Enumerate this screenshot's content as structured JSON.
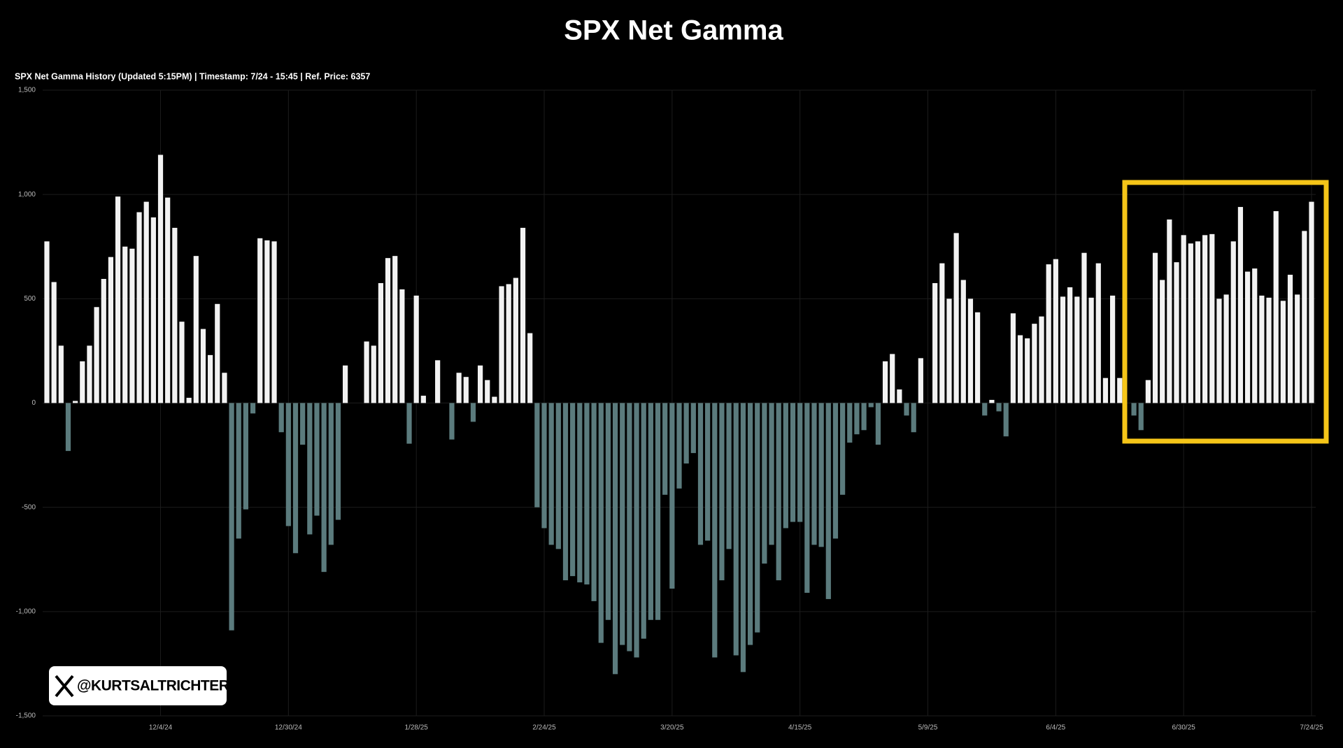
{
  "chart_data": {
    "type": "bar",
    "title": "SPX Net Gamma",
    "subtitle": "SPX Net Gamma History (Updated 5:15PM) | Timestamp: 7/24 - 15:45  | Ref. Price: 6357",
    "handle": "@KURTSALTRICHTER",
    "categories": [
      null,
      null,
      null,
      null,
      null,
      null,
      null,
      null,
      null,
      null,
      null,
      null,
      null,
      null,
      null,
      null,
      "12/4/24",
      null,
      null,
      null,
      null,
      null,
      null,
      null,
      null,
      null,
      null,
      null,
      null,
      null,
      null,
      null,
      null,
      null,
      "12/30/24",
      null,
      null,
      null,
      null,
      null,
      null,
      null,
      null,
      null,
      null,
      null,
      null,
      null,
      null,
      null,
      null,
      null,
      "1/28/25",
      null,
      null,
      null,
      null,
      null,
      null,
      null,
      null,
      null,
      null,
      null,
      null,
      null,
      null,
      null,
      null,
      null,
      "2/24/25",
      null,
      null,
      null,
      null,
      null,
      null,
      null,
      null,
      null,
      null,
      null,
      null,
      null,
      null,
      null,
      null,
      null,
      "3/20/25",
      null,
      null,
      null,
      null,
      null,
      null,
      null,
      null,
      null,
      null,
      null,
      null,
      null,
      null,
      null,
      null,
      null,
      "4/15/25",
      null,
      null,
      null,
      null,
      null,
      null,
      null,
      null,
      null,
      null,
      null,
      null,
      null,
      null,
      null,
      null,
      null,
      "5/9/25",
      null,
      null,
      null,
      null,
      null,
      null,
      null,
      null,
      null,
      null,
      null,
      null,
      null,
      null,
      null,
      null,
      null,
      "6/4/25",
      null,
      null,
      null,
      null,
      null,
      null,
      null,
      null,
      null,
      null,
      null,
      null,
      null,
      null,
      null,
      null,
      null,
      "6/30/25",
      null,
      null,
      null,
      null,
      null,
      null,
      null,
      null,
      null,
      null,
      null,
      null,
      null,
      null,
      null,
      null,
      null,
      "7/24/25"
    ],
    "values": [
      775,
      580,
      275,
      -230,
      10,
      200,
      275,
      460,
      595,
      700,
      990,
      750,
      740,
      915,
      965,
      890,
      1190,
      985,
      840,
      390,
      25,
      705,
      355,
      230,
      475,
      145,
      -1090,
      -650,
      -510,
      -50,
      790,
      780,
      775,
      -140,
      -590,
      -720,
      -200,
      -630,
      -540,
      -810,
      -680,
      -560,
      180,
      0,
      0,
      295,
      275,
      575,
      695,
      705,
      545,
      -195,
      515,
      35,
      0,
      205,
      0,
      -175,
      145,
      125,
      -90,
      180,
      110,
      30,
      560,
      570,
      600,
      840,
      335,
      -500,
      -600,
      -680,
      -700,
      -850,
      -830,
      -860,
      -870,
      -950,
      -1150,
      -1040,
      -1300,
      -1160,
      -1190,
      -1220,
      -1130,
      -1040,
      -1040,
      -440,
      -890,
      -410,
      -290,
      -240,
      -680,
      -660,
      -1220,
      -850,
      -700,
      -1210,
      -1290,
      -1160,
      -1100,
      -770,
      -680,
      -850,
      -600,
      -570,
      -570,
      -910,
      -680,
      -690,
      -940,
      -650,
      -440,
      -190,
      -150,
      -130,
      -20,
      -200,
      200,
      235,
      65,
      -60,
      -140,
      215,
      0,
      575,
      670,
      500,
      815,
      590,
      500,
      435,
      -60,
      15,
      -40,
      -160,
      430,
      325,
      310,
      380,
      415,
      665,
      690,
      510,
      555,
      510,
      720,
      505,
      670,
      120,
      515,
      120,
      0,
      -60,
      -130,
      110,
      720,
      590,
      880,
      675,
      805,
      765,
      775,
      805,
      810,
      500,
      520,
      775,
      940,
      630,
      645,
      515,
      505,
      920,
      490,
      615,
      520,
      825,
      965
    ],
    "color": "#f2f2f2",
    "negative_color": "#5b7b7d",
    "ylim": [
      -1500,
      1500
    ],
    "yticks": [
      {
        "value": -1500,
        "label": "-1,500"
      },
      {
        "value": -1000,
        "label": "-1,000"
      },
      -500,
      0,
      500,
      {
        "value": 1000,
        "label": "1,000"
      },
      {
        "value": 1500,
        "label": "1,500"
      }
    ],
    "grid": true
  }
}
